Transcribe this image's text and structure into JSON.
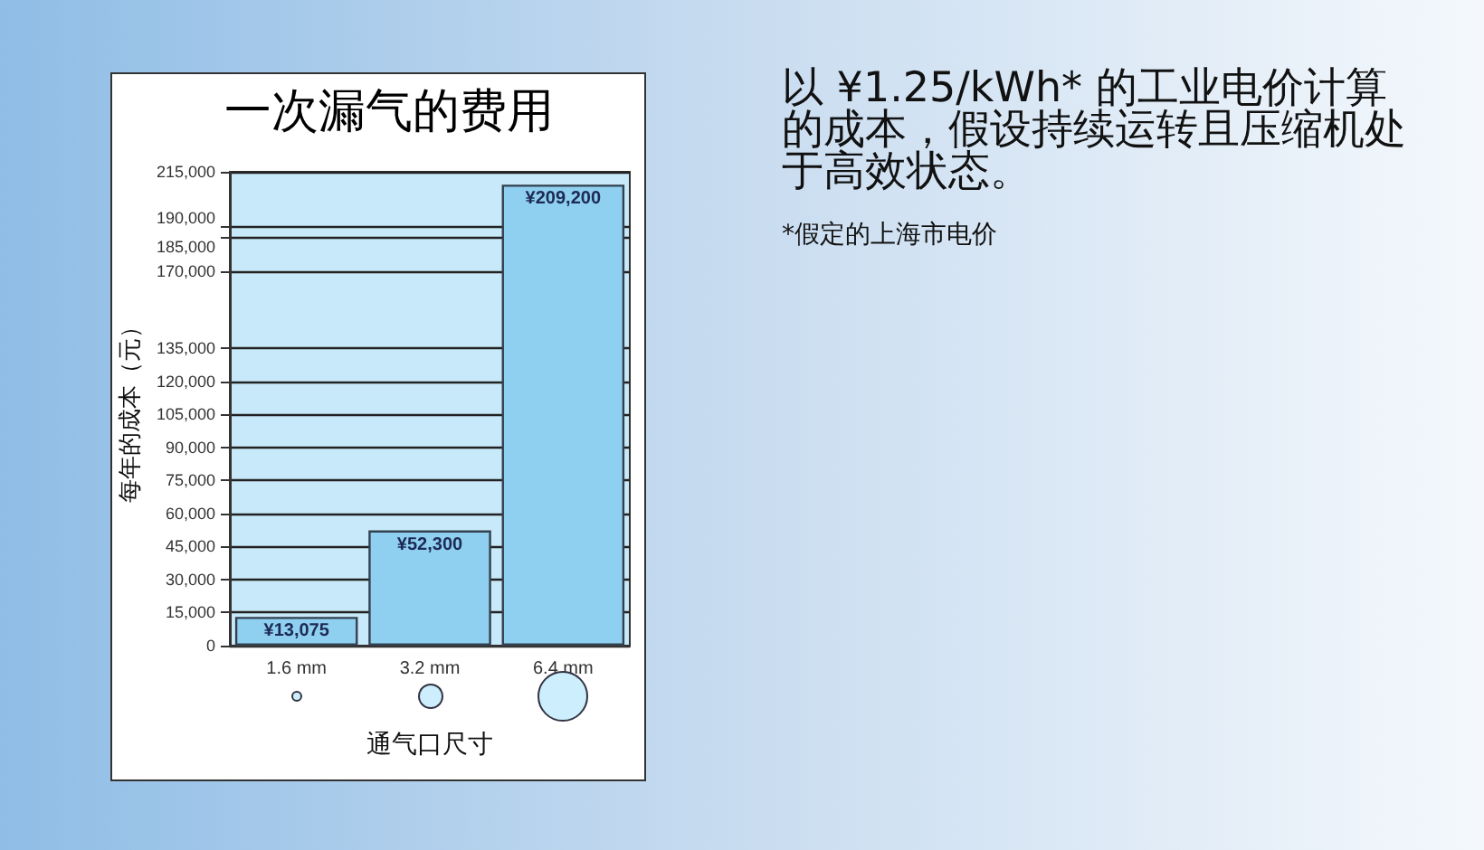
{
  "chart_data": {
    "type": "bar",
    "title": "一次漏气的费用",
    "xlabel": "通气口尺寸",
    "ylabel": "每年的成本（元）",
    "categories": [
      "1.6 mm",
      "3.2 mm",
      "6.4 mm"
    ],
    "values": [
      13075,
      52300,
      209200
    ],
    "value_labels": [
      "¥13,075",
      "¥52,300",
      "¥209,200"
    ],
    "color": "#8fd0f0",
    "ylim": [
      0,
      215000
    ],
    "yticks": [
      0,
      {
        "value": 15000,
        "label": "15,000"
      },
      {
        "value": 30000,
        "label": "30,000"
      },
      {
        "value": 45000,
        "label": "45,000"
      },
      {
        "value": 60000,
        "label": "60,000"
      },
      {
        "value": 75000,
        "label": "75,000"
      },
      {
        "value": 90000,
        "label": "90,000"
      },
      {
        "value": 105000,
        "label": "105,000"
      },
      {
        "value": 120000,
        "label": "120,000"
      },
      {
        "value": 135000,
        "label": "135,000"
      },
      {
        "value": 170000,
        "label": "170,000"
      },
      {
        "value": 185000,
        "label": "185,000"
      },
      {
        "value": 190000,
        "label": "190,000"
      },
      {
        "value": 215000,
        "label": "215,000"
      }
    ],
    "grid": "y",
    "annotations": [
      "以 ¥1.25/kWh* 的工业电价计算的成本，假设持续运转且压缩机处于高效状态。",
      "*假定的上海市电价"
    ]
  }
}
